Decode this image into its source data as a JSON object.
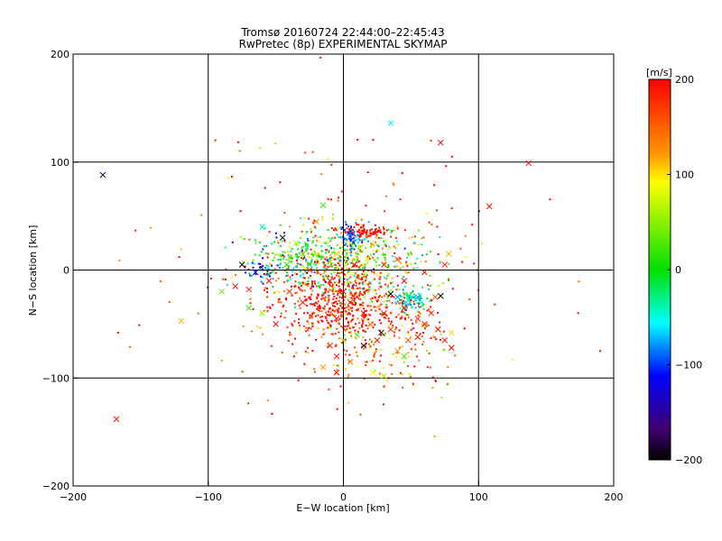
{
  "chart_data": {
    "type": "scatter",
    "title": "Tromsø 20160724 22:44:00–22:45:43",
    "subtitle": "RwPretec (8p) EXPERIMENTAL SKYMAP",
    "xlabel": "E−W location [km]",
    "ylabel": "N−S location [km]",
    "xlim": [
      -200,
      200
    ],
    "ylim": [
      -200,
      200
    ],
    "xticks": [
      -200,
      -100,
      0,
      100,
      200
    ],
    "yticks": [
      -200,
      -100,
      0,
      100,
      200
    ],
    "grid_lines": [
      -100,
      0,
      100
    ],
    "colorbar": {
      "label": "[m/s]",
      "range": [
        -200,
        200
      ],
      "ticks": [
        200,
        100,
        0,
        -100,
        -200
      ]
    },
    "markers": [
      {
        "x": 35,
        "y": 136,
        "v": -60,
        "m": "x"
      },
      {
        "x": 72,
        "y": 118,
        "v": 200,
        "m": "x"
      },
      {
        "x": -178,
        "y": 88,
        "v": -180,
        "m": "x"
      },
      {
        "x": 137,
        "y": 99,
        "v": 195,
        "m": "x"
      },
      {
        "x": 108,
        "y": 59,
        "v": 190,
        "m": "x"
      },
      {
        "x": -120,
        "y": -47,
        "v": 110,
        "m": "x"
      },
      {
        "x": -168,
        "y": -138,
        "v": 195,
        "m": "x"
      },
      {
        "x": -60,
        "y": 40,
        "v": -30,
        "m": "x"
      },
      {
        "x": -45,
        "y": 30,
        "v": -200,
        "m": "x"
      },
      {
        "x": -35,
        "y": 25,
        "v": 60,
        "m": "x"
      },
      {
        "x": -15,
        "y": 60,
        "v": 20,
        "m": "x"
      },
      {
        "x": -20,
        "y": 45,
        "v": 120,
        "m": "x"
      },
      {
        "x": -75,
        "y": 5,
        "v": -200,
        "m": "x"
      },
      {
        "x": -65,
        "y": -2,
        "v": -120,
        "m": "x"
      },
      {
        "x": -55,
        "y": -10,
        "v": 195,
        "m": "x"
      },
      {
        "x": -70,
        "y": -18,
        "v": 190,
        "m": "x"
      },
      {
        "x": -80,
        "y": -15,
        "v": 190,
        "m": "x"
      },
      {
        "x": -90,
        "y": -20,
        "v": 40,
        "m": "x"
      },
      {
        "x": -60,
        "y": -40,
        "v": 50,
        "m": "x"
      },
      {
        "x": -50,
        "y": -50,
        "v": 195,
        "m": "x"
      },
      {
        "x": -40,
        "y": -20,
        "v": 190,
        "m": "x"
      },
      {
        "x": -30,
        "y": -30,
        "v": 195,
        "m": "x"
      },
      {
        "x": -25,
        "y": 0,
        "v": 195,
        "m": "x"
      },
      {
        "x": -10,
        "y": -10,
        "v": 190,
        "m": "x"
      },
      {
        "x": 0,
        "y": -20,
        "v": 200,
        "m": "x"
      },
      {
        "x": 5,
        "y": -30,
        "v": 195,
        "m": "x"
      },
      {
        "x": 10,
        "y": -25,
        "v": 190,
        "m": "x"
      },
      {
        "x": 15,
        "y": -40,
        "v": 200,
        "m": "x"
      },
      {
        "x": -5,
        "y": -45,
        "v": 195,
        "m": "x"
      },
      {
        "x": 20,
        "y": -50,
        "v": 140,
        "m": "x"
      },
      {
        "x": 30,
        "y": -40,
        "v": 190,
        "m": "x"
      },
      {
        "x": 35,
        "y": -55,
        "v": 170,
        "m": "x"
      },
      {
        "x": 45,
        "y": -35,
        "v": 190,
        "m": "x"
      },
      {
        "x": 55,
        "y": -45,
        "v": 180,
        "m": "x"
      },
      {
        "x": 60,
        "y": -50,
        "v": 190,
        "m": "x"
      },
      {
        "x": 65,
        "y": -40,
        "v": 170,
        "m": "x"
      },
      {
        "x": 70,
        "y": -55,
        "v": 200,
        "m": "x"
      },
      {
        "x": 75,
        "y": -65,
        "v": 190,
        "m": "x"
      },
      {
        "x": 80,
        "y": -58,
        "v": 100,
        "m": "x"
      },
      {
        "x": 80,
        "y": -72,
        "v": 195,
        "m": "x"
      },
      {
        "x": 35,
        "y": -22,
        "v": -200,
        "m": "x"
      },
      {
        "x": 48,
        "y": -28,
        "v": -40,
        "m": "x"
      },
      {
        "x": 55,
        "y": -25,
        "v": -80,
        "m": "x"
      },
      {
        "x": 72,
        "y": -24,
        "v": -200,
        "m": "x"
      },
      {
        "x": 28,
        "y": -58,
        "v": -200,
        "m": "x"
      },
      {
        "x": 15,
        "y": -70,
        "v": -200,
        "m": "x"
      },
      {
        "x": 10,
        "y": -60,
        "v": 30,
        "m": "x"
      },
      {
        "x": 0,
        "y": -65,
        "v": 50,
        "m": "x"
      },
      {
        "x": -10,
        "y": -70,
        "v": 195,
        "m": "x"
      },
      {
        "x": -5,
        "y": -80,
        "v": 190,
        "m": "x"
      },
      {
        "x": -15,
        "y": -90,
        "v": 120,
        "m": "x"
      },
      {
        "x": -5,
        "y": -95,
        "v": 195,
        "m": "x"
      },
      {
        "x": 5,
        "y": -85,
        "v": 140,
        "m": "x"
      },
      {
        "x": 22,
        "y": -95,
        "v": 80,
        "m": "x"
      },
      {
        "x": 30,
        "y": -98,
        "v": 60,
        "m": "x"
      },
      {
        "x": 40,
        "y": -75,
        "v": 130,
        "m": "x"
      },
      {
        "x": 45,
        "y": -80,
        "v": 20,
        "m": "x"
      },
      {
        "x": 48,
        "y": -65,
        "v": 160,
        "m": "x"
      },
      {
        "x": 55,
        "y": -62,
        "v": 190,
        "m": "x"
      },
      {
        "x": 68,
        "y": -25,
        "v": 160,
        "m": "x"
      },
      {
        "x": 78,
        "y": 15,
        "v": 110,
        "m": "x"
      },
      {
        "x": 75,
        "y": 5,
        "v": 180,
        "m": "x"
      },
      {
        "x": 60,
        "y": -2,
        "v": 195,
        "m": "x"
      },
      {
        "x": 40,
        "y": 10,
        "v": 170,
        "m": "x"
      },
      {
        "x": 30,
        "y": 5,
        "v": 190,
        "m": "x"
      },
      {
        "x": 5,
        "y": 25,
        "v": 80,
        "m": "x"
      },
      {
        "x": -5,
        "y": 15,
        "v": 100,
        "m": "x"
      },
      {
        "x": 12,
        "y": 20,
        "v": 60,
        "m": "x"
      },
      {
        "x": 18,
        "y": 10,
        "v": 70,
        "m": "x"
      },
      {
        "x": 8,
        "y": 5,
        "v": 195,
        "m": "x"
      },
      {
        "x": -42,
        "y": 5,
        "v": 10,
        "m": "x"
      },
      {
        "x": -30,
        "y": 15,
        "v": 30,
        "m": "x"
      },
      {
        "x": -70,
        "y": -35,
        "v": 20,
        "m": "x"
      },
      {
        "x": 25,
        "y": -65,
        "v": 190,
        "m": "x"
      },
      {
        "x": 40,
        "y": -25,
        "v": -80,
        "m": "x"
      },
      {
        "x": 45,
        "y": -10,
        "v": 195,
        "m": "x"
      }
    ]
  }
}
